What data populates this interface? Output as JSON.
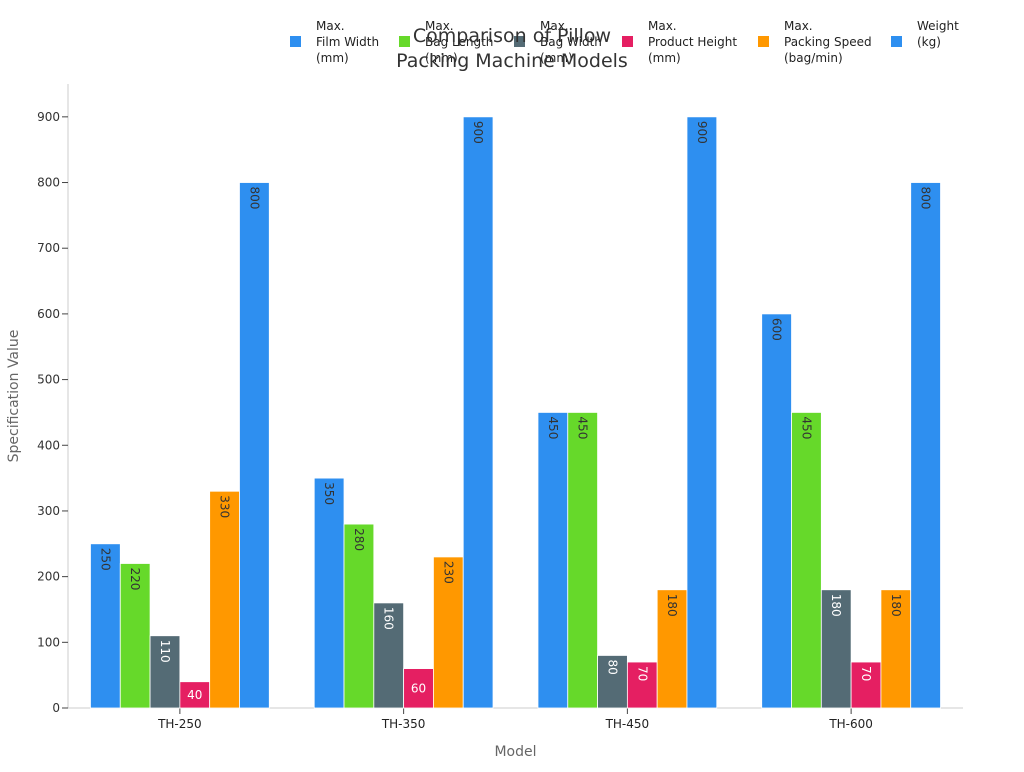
{
  "chart_data": {
    "type": "bar",
    "title_lines": [
      "Comparison of Pillow",
      "Packing Machine Models"
    ],
    "xlabel": "Model",
    "ylabel": "Specification Value",
    "categories": [
      "TH-250",
      "TH-350",
      "TH-450",
      "TH-600"
    ],
    "ylim": [
      0,
      950
    ],
    "yticks": [
      0,
      100,
      200,
      300,
      400,
      500,
      600,
      700,
      800,
      900
    ],
    "grid": false,
    "legend_position": "top",
    "series": [
      {
        "name": "Max. Film Width (mm)",
        "legend_lines": [
          "Max.",
          "Film Width",
          "(mm)"
        ],
        "color": "#2e8ff0",
        "values": [
          250,
          350,
          450,
          600
        ]
      },
      {
        "name": "Max. Bag Length (mm)",
        "legend_lines": [
          "Max.",
          "Bag Length",
          "(mm)"
        ],
        "color": "#66d92a",
        "values": [
          220,
          280,
          450,
          450
        ]
      },
      {
        "name": "Max. Bag Width (mm)",
        "legend_lines": [
          "Max.",
          "Bag Width",
          "(mm)"
        ],
        "color": "#546b75",
        "values": [
          110,
          160,
          80,
          180
        ]
      },
      {
        "name": "Max. Product Height (mm)",
        "legend_lines": [
          "Max.",
          "Product Height",
          "(mm)"
        ],
        "color": "#e51f62",
        "values": [
          40,
          60,
          70,
          70
        ]
      },
      {
        "name": "Max. Packing Speed (bag/min)",
        "legend_lines": [
          "Max.",
          "Packing Speed",
          "(bag/min)"
        ],
        "color": "#ff9800",
        "values": [
          330,
          230,
          180,
          180
        ]
      },
      {
        "name": "Weight (kg)",
        "legend_lines": [
          "Weight",
          "(kg)"
        ],
        "color": "#2e8ff0",
        "values": [
          800,
          900,
          900,
          800
        ]
      }
    ]
  }
}
